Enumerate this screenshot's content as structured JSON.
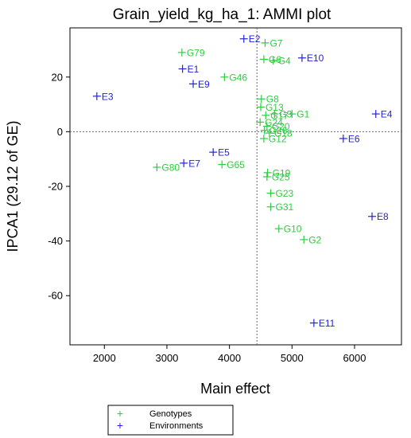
{
  "chart_data": {
    "type": "scatter",
    "title": "Grain_yield_kg_ha_1: AMMI plot",
    "xlabel": "Main effect",
    "ylabel": "IPCA1 (29.12 of GE)",
    "xlim": [
      1450,
      6750
    ],
    "ylim": [
      -78,
      38
    ],
    "xticks": [
      2000,
      3000,
      4000,
      5000,
      6000
    ],
    "yticks": [
      -60,
      -40,
      -20,
      0,
      20
    ],
    "xtick_labels": [
      "2000",
      "3000",
      "4000",
      "5000",
      "6000"
    ],
    "ytick_labels": [
      "-60",
      "-40",
      "-20",
      "0",
      "20"
    ],
    "reference_lines": {
      "x": 4440,
      "y": 0
    },
    "grid": false,
    "legend_position": "bottom-left",
    "series": [
      {
        "name": "Genotypes",
        "color": "#2ecc40",
        "points": [
          {
            "label": "G79",
            "x": 3240,
            "y": 29
          },
          {
            "label": "G46",
            "x": 3920,
            "y": 20
          },
          {
            "label": "G7",
            "x": 4570,
            "y": 32.5
          },
          {
            "label": "G6",
            "x": 4550,
            "y": 26.5
          },
          {
            "label": "G4",
            "x": 4700,
            "y": 26
          },
          {
            "label": "G8",
            "x": 4510,
            "y": 12
          },
          {
            "label": "G13",
            "x": 4500,
            "y": 9
          },
          {
            "label": "G1",
            "x": 5000,
            "y": 6.5
          },
          {
            "label": "G3",
            "x": 4720,
            "y": 6.5
          },
          {
            "label": "G17",
            "x": 4580,
            "y": 6
          },
          {
            "label": "G24",
            "x": 4490,
            "y": 3.5
          },
          {
            "label": "G20",
            "x": 4600,
            "y": 2
          },
          {
            "label": "G26",
            "x": 4560,
            "y": 0.5
          },
          {
            "label": "G18",
            "x": 4640,
            "y": -0.5
          },
          {
            "label": "G12",
            "x": 4550,
            "y": -2.5
          },
          {
            "label": "G65",
            "x": 3880,
            "y": -12
          },
          {
            "label": "G80",
            "x": 2840,
            "y": -13
          },
          {
            "label": "G19",
            "x": 4610,
            "y": -15
          },
          {
            "label": "G25",
            "x": 4600,
            "y": -16.5
          },
          {
            "label": "G23",
            "x": 4660,
            "y": -22.5
          },
          {
            "label": "G31",
            "x": 4660,
            "y": -27.5
          },
          {
            "label": "G10",
            "x": 4790,
            "y": -35.5
          },
          {
            "label": "G2",
            "x": 5190,
            "y": -39.5
          }
        ]
      },
      {
        "name": "Environments",
        "color": "#2222dd",
        "points": [
          {
            "label": "E2",
            "x": 4230,
            "y": 34
          },
          {
            "label": "E10",
            "x": 5160,
            "y": 27
          },
          {
            "label": "E1",
            "x": 3250,
            "y": 23
          },
          {
            "label": "E9",
            "x": 3420,
            "y": 17.5
          },
          {
            "label": "E3",
            "x": 1880,
            "y": 13
          },
          {
            "label": "E4",
            "x": 6340,
            "y": 6.5
          },
          {
            "label": "E6",
            "x": 5820,
            "y": -2.5
          },
          {
            "label": "E5",
            "x": 3740,
            "y": -7.5
          },
          {
            "label": "E7",
            "x": 3270,
            "y": -11.5
          },
          {
            "label": "E8",
            "x": 6280,
            "y": -31
          },
          {
            "label": "E11",
            "x": 5350,
            "y": -70
          }
        ]
      }
    ]
  }
}
